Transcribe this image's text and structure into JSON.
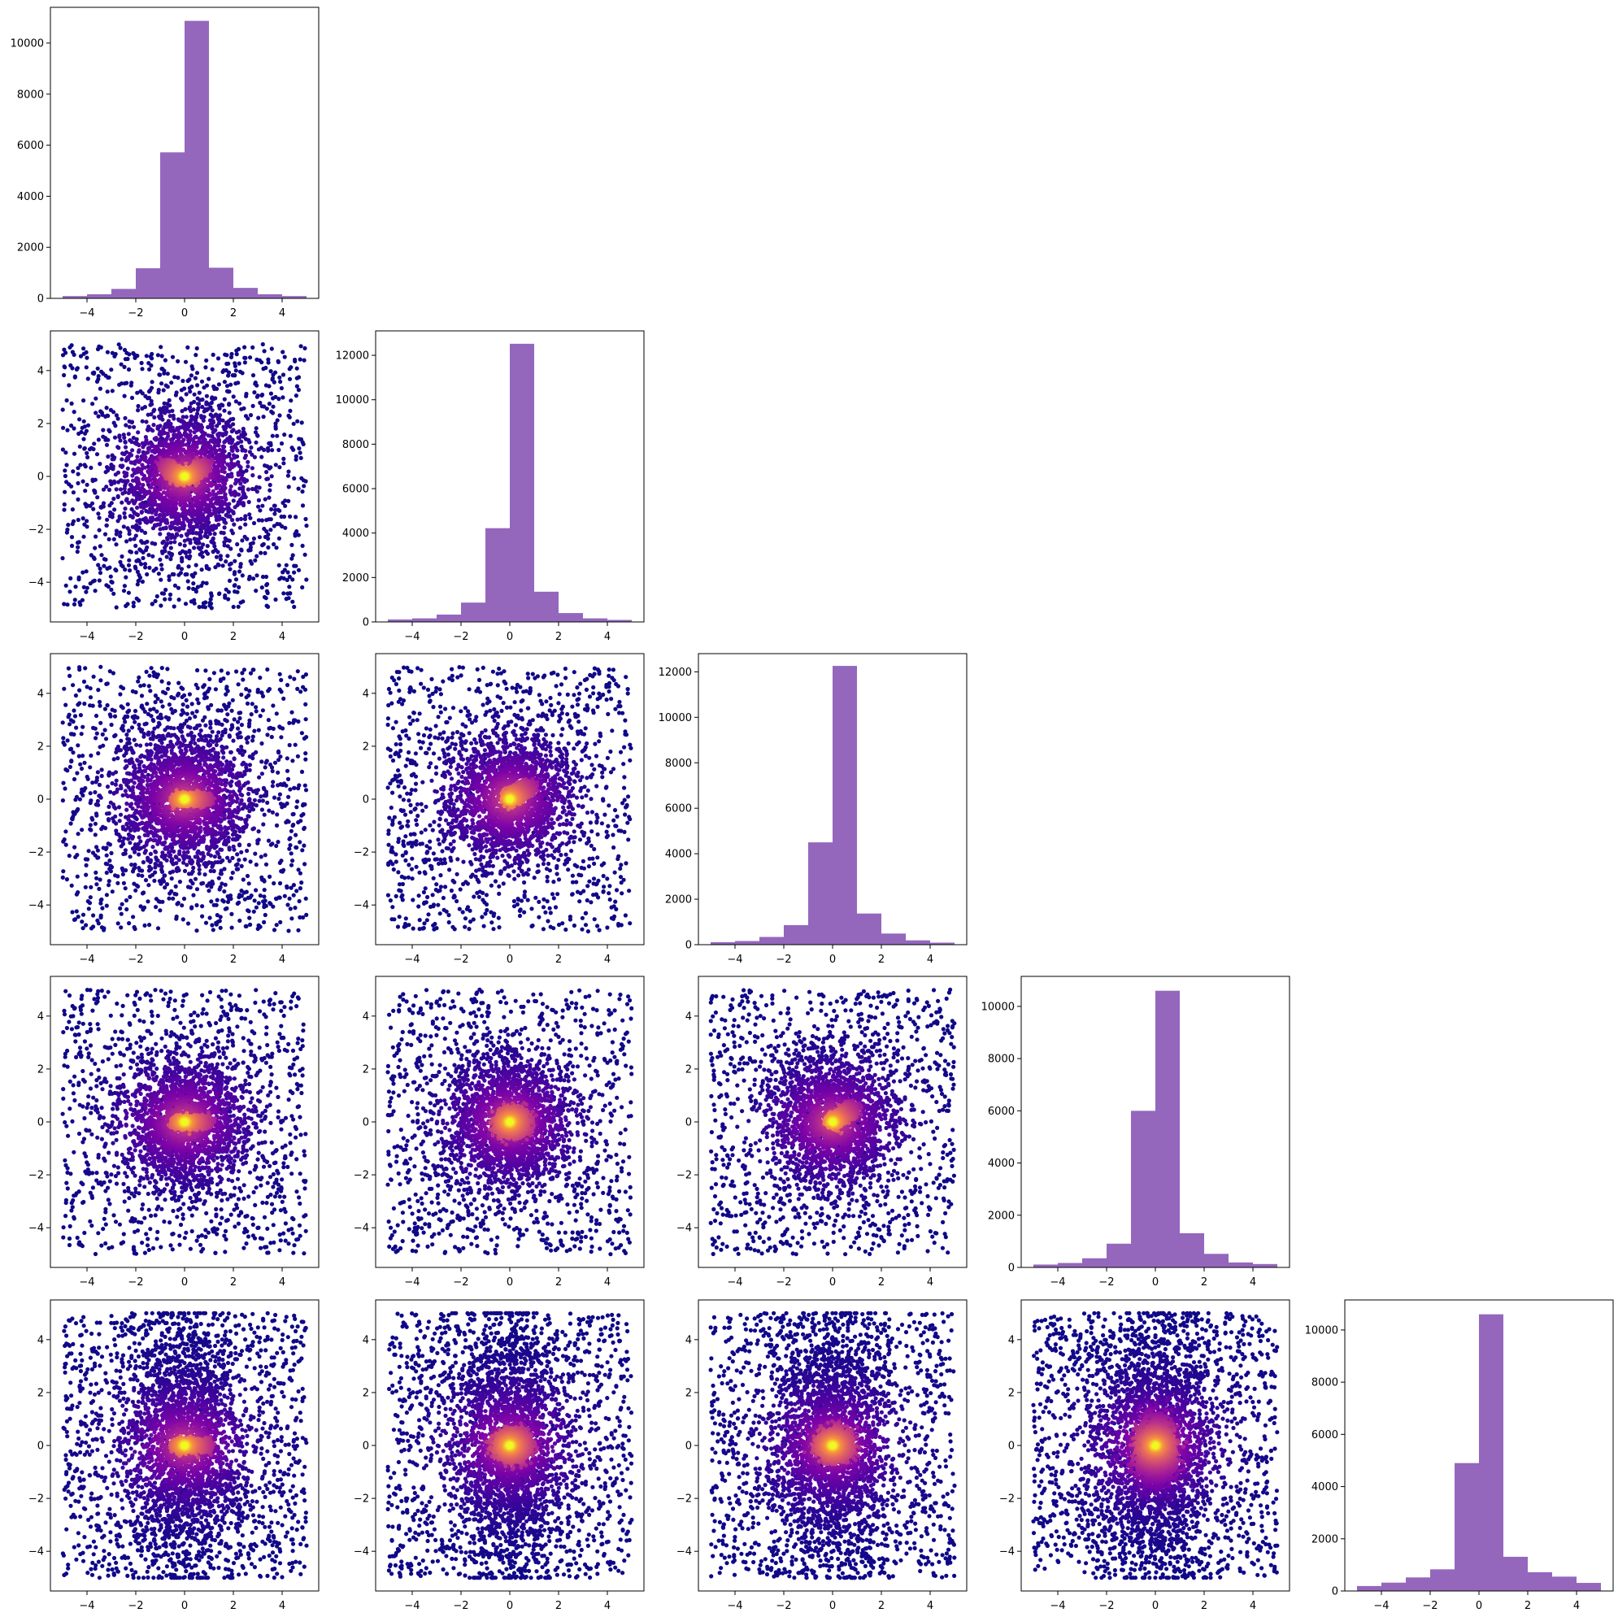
{
  "figure": {
    "layout": "corner-plot",
    "dimensions": 5,
    "hist_color": "#9467bd",
    "scatter_colormap": "plasma",
    "scatter_low_color": "#2a0593",
    "scatter_high_color": "#f0f921"
  },
  "chart_data": [
    {
      "type": "bar",
      "panel": "hist-1",
      "bin_edges": [
        -5,
        -4,
        -3,
        -2,
        -1,
        0,
        1,
        2,
        3,
        4,
        5
      ],
      "values": [
        90,
        160,
        370,
        1180,
        5720,
        10870,
        1200,
        410,
        160,
        90
      ],
      "xlim": [
        -5.5,
        5.5
      ],
      "ylim": [
        0,
        11400
      ],
      "xticks": [
        "−4",
        "−2",
        "0",
        "2",
        "4"
      ],
      "yticks": [
        "0",
        "2000",
        "4000",
        "6000",
        "8000",
        "10000"
      ]
    },
    {
      "type": "scatter",
      "panel": "scatter-2-1",
      "xlim": [
        -5.5,
        5.5
      ],
      "ylim": [
        -5.5,
        5.5
      ],
      "xticks": [
        "−4",
        "−2",
        "0",
        "2",
        "4"
      ],
      "yticks": [
        "−4",
        "−2",
        "0",
        "2",
        "4"
      ],
      "core_shape": "curved-arc",
      "points_approx": 5000
    },
    {
      "type": "bar",
      "panel": "hist-2",
      "bin_edges": [
        -5,
        -4,
        -3,
        -2,
        -1,
        0,
        1,
        2,
        3,
        4,
        5
      ],
      "values": [
        110,
        160,
        330,
        870,
        4220,
        12520,
        1360,
        400,
        160,
        90
      ],
      "xlim": [
        -5.5,
        5.5
      ],
      "ylim": [
        0,
        13100
      ],
      "xticks": [
        "−4",
        "−2",
        "0",
        "2",
        "4"
      ],
      "yticks": [
        "0",
        "2000",
        "4000",
        "6000",
        "8000",
        "10000",
        "12000"
      ]
    },
    {
      "type": "scatter",
      "panel": "scatter-3-1",
      "xlim": [
        -5.5,
        5.5
      ],
      "ylim": [
        -5.5,
        5.5
      ],
      "xticks": [
        "−4",
        "−2",
        "0",
        "2",
        "4"
      ],
      "yticks": [
        "−4",
        "−2",
        "0",
        "2",
        "4"
      ],
      "core_shape": "horizontal-bar",
      "points_approx": 5000
    },
    {
      "type": "scatter",
      "panel": "scatter-3-2",
      "xlim": [
        -5.5,
        5.5
      ],
      "ylim": [
        -5.5,
        5.5
      ],
      "xticks": [
        "−4",
        "−2",
        "0",
        "2",
        "4"
      ],
      "yticks": [
        "−4",
        "−2",
        "0",
        "2",
        "4"
      ],
      "core_shape": "diagonal",
      "points_approx": 5000
    },
    {
      "type": "bar",
      "panel": "hist-3",
      "bin_edges": [
        -5,
        -4,
        -3,
        -2,
        -1,
        0,
        1,
        2,
        3,
        4,
        5
      ],
      "values": [
        110,
        160,
        340,
        860,
        4500,
        12260,
        1370,
        490,
        190,
        90
      ],
      "xlim": [
        -5.5,
        5.5
      ],
      "ylim": [
        0,
        12800
      ],
      "xticks": [
        "−4",
        "−2",
        "0",
        "2",
        "4"
      ],
      "yticks": [
        "0",
        "2000",
        "4000",
        "6000",
        "8000",
        "10000",
        "12000"
      ]
    },
    {
      "type": "scatter",
      "panel": "scatter-4-1",
      "xlim": [
        -5.5,
        5.5
      ],
      "ylim": [
        -5.5,
        5.5
      ],
      "xticks": [
        "−4",
        "−2",
        "0",
        "2",
        "4"
      ],
      "yticks": [
        "−4",
        "−2",
        "0",
        "2",
        "4"
      ],
      "core_shape": "horizontal-bar",
      "points_approx": 5000
    },
    {
      "type": "scatter",
      "panel": "scatter-4-2",
      "xlim": [
        -5.5,
        5.5
      ],
      "ylim": [
        -5.5,
        5.5
      ],
      "xticks": [
        "−4",
        "−2",
        "0",
        "2",
        "4"
      ],
      "yticks": [
        "−4",
        "−2",
        "0",
        "2",
        "4"
      ],
      "core_shape": "blob",
      "points_approx": 5000
    },
    {
      "type": "scatter",
      "panel": "scatter-4-3",
      "xlim": [
        -5.5,
        5.5
      ],
      "ylim": [
        -5.5,
        5.5
      ],
      "xticks": [
        "−4",
        "−2",
        "0",
        "2",
        "4"
      ],
      "yticks": [
        "−4",
        "−2",
        "0",
        "2",
        "4"
      ],
      "core_shape": "diagonal",
      "points_approx": 5000
    },
    {
      "type": "bar",
      "panel": "hist-4",
      "bin_edges": [
        -5,
        -4,
        -3,
        -2,
        -1,
        0,
        1,
        2,
        3,
        4,
        5
      ],
      "values": [
        110,
        170,
        350,
        910,
        6000,
        10600,
        1310,
        520,
        190,
        130
      ],
      "xlim": [
        -5.5,
        5.5
      ],
      "ylim": [
        0,
        11150
      ],
      "xticks": [
        "−4",
        "−2",
        "0",
        "2",
        "4"
      ],
      "yticks": [
        "0",
        "2000",
        "4000",
        "6000",
        "8000",
        "10000"
      ]
    },
    {
      "type": "scatter",
      "panel": "scatter-5-1",
      "xlim": [
        -5.5,
        5.5
      ],
      "ylim": [
        -5.5,
        5.5
      ],
      "xticks": [
        "−4",
        "−2",
        "0",
        "2",
        "4"
      ],
      "yticks": [
        "−4",
        "−2",
        "0",
        "2",
        "4"
      ],
      "core_shape": "horizontal-bar-wide",
      "points_approx": 6000
    },
    {
      "type": "scatter",
      "panel": "scatter-5-2",
      "xlim": [
        -5.5,
        5.5
      ],
      "ylim": [
        -5.5,
        5.5
      ],
      "xticks": [
        "−4",
        "−2",
        "0",
        "2",
        "4"
      ],
      "yticks": [
        "−4",
        "−2",
        "0",
        "2",
        "4"
      ],
      "core_shape": "blob-wide",
      "points_approx": 6000
    },
    {
      "type": "scatter",
      "panel": "scatter-5-3",
      "xlim": [
        -5.5,
        5.5
      ],
      "ylim": [
        -5.5,
        5.5
      ],
      "xticks": [
        "−4",
        "−2",
        "0",
        "2",
        "4"
      ],
      "yticks": [
        "−4",
        "−2",
        "0",
        "2",
        "4"
      ],
      "core_shape": "blob-wide",
      "points_approx": 6000
    },
    {
      "type": "scatter",
      "panel": "scatter-5-4",
      "xlim": [
        -5.5,
        5.5
      ],
      "ylim": [
        -5.5,
        5.5
      ],
      "xticks": [
        "−4",
        "−2",
        "0",
        "2",
        "4"
      ],
      "yticks": [
        "−4",
        "−2",
        "0",
        "2",
        "4"
      ],
      "core_shape": "funnel",
      "points_approx": 6000
    },
    {
      "type": "bar",
      "panel": "hist-5",
      "bin_edges": [
        -5,
        -4,
        -3,
        -2,
        -1,
        0,
        1,
        2,
        3,
        4,
        5
      ],
      "values": [
        190,
        320,
        520,
        830,
        4900,
        10600,
        1310,
        720,
        550,
        310
      ],
      "xlim": [
        -5.5,
        5.5
      ],
      "ylim": [
        0,
        11150
      ],
      "xticks": [
        "−4",
        "−2",
        "0",
        "2",
        "4"
      ],
      "yticks": [
        "0",
        "2000",
        "4000",
        "6000",
        "8000",
        "10000"
      ]
    }
  ]
}
